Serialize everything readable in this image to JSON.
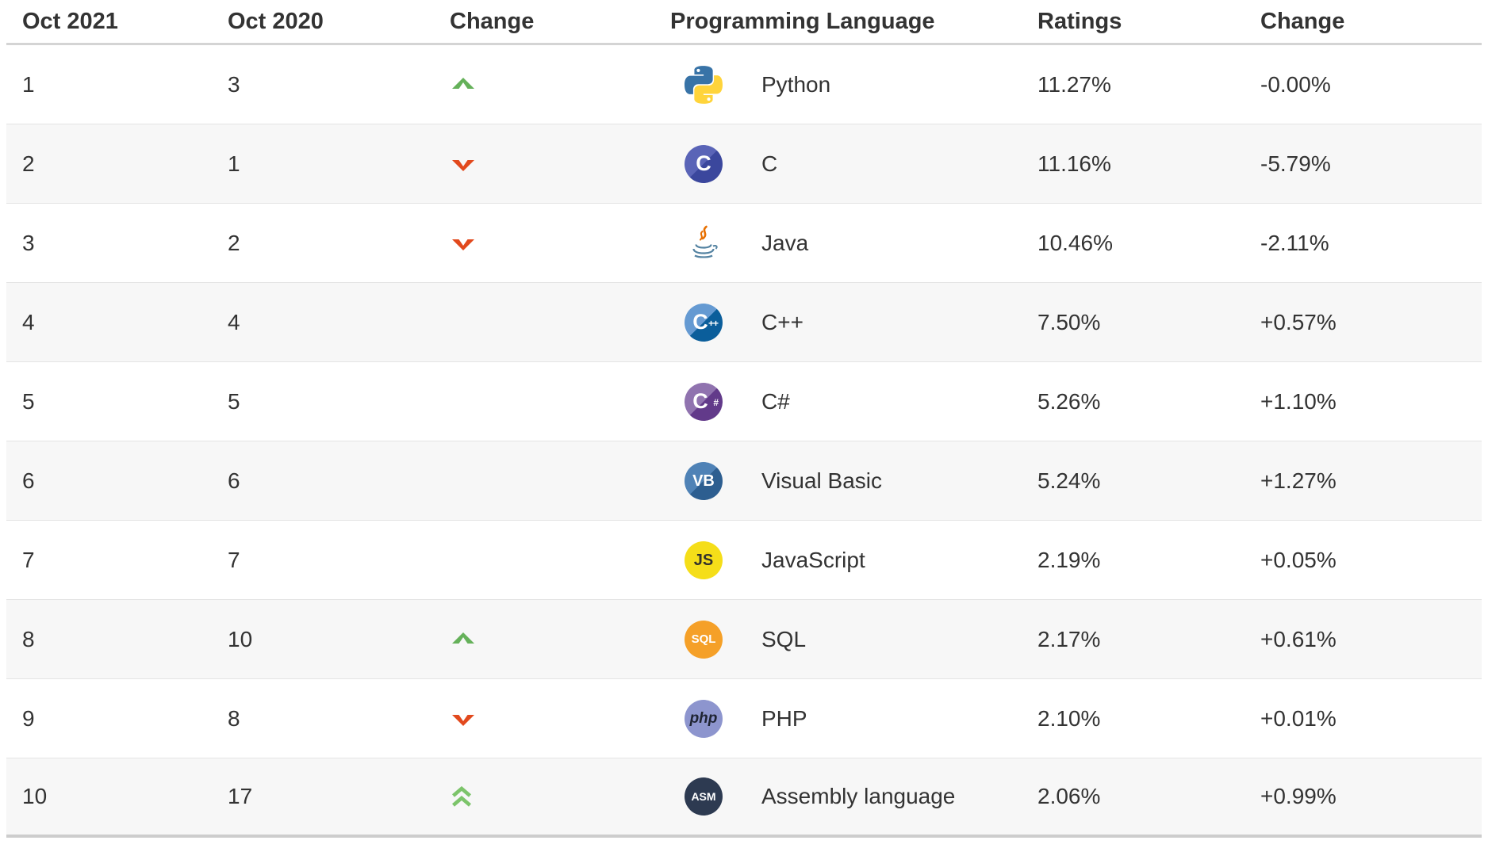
{
  "page": {
    "background": "#ffffff"
  },
  "colors": {
    "header_text": "#333333",
    "body_text": "#333333",
    "row_alt_bg": "#f7f7f7",
    "row_border": "#e4e4e4",
    "header_border": "#d4d4d4",
    "table_bottom_border": "#cdcdcd",
    "trend_up": "#65b15a",
    "trend_down": "#e2491d",
    "trend_up_double": "#7cc46a"
  },
  "table": {
    "headers": [
      "Oct 2021",
      "Oct 2020",
      "Change",
      "Programming Language",
      "Ratings",
      "Change"
    ],
    "rows": [
      {
        "rank2021": "1",
        "rank2020": "3",
        "trend": "up",
        "language": "Python",
        "ratings": "11.27%",
        "change": "-0.00%",
        "icon": {
          "name": "python-icon",
          "kind": "python"
        }
      },
      {
        "rank2021": "2",
        "rank2020": "1",
        "trend": "down",
        "language": "C",
        "ratings": "11.16%",
        "change": "-5.79%",
        "icon": {
          "name": "c-icon",
          "kind": "badge",
          "label": "C",
          "bg": "#5a64b7",
          "bg2": "#3b479d",
          "fg": "#ffffff",
          "size": 27
        }
      },
      {
        "rank2021": "3",
        "rank2020": "2",
        "trend": "down",
        "language": "Java",
        "ratings": "10.46%",
        "change": "-2.11%",
        "icon": {
          "name": "java-icon",
          "kind": "java"
        }
      },
      {
        "rank2021": "4",
        "rank2020": "4",
        "trend": "none",
        "language": "C++",
        "ratings": "7.50%",
        "change": "+0.57%",
        "icon": {
          "name": "cpp-icon",
          "kind": "badge",
          "label": "C",
          "suffix": "++",
          "bg": "#659ad2",
          "bg2": "#0b5e9b",
          "fg": "#ffffff",
          "size": 27
        }
      },
      {
        "rank2021": "5",
        "rank2020": "5",
        "trend": "none",
        "language": "C#",
        "ratings": "5.26%",
        "change": "+1.10%",
        "icon": {
          "name": "csharp-icon",
          "kind": "badge",
          "label": "C",
          "suffix": "#",
          "bg": "#9073af",
          "bg2": "#623a8a",
          "fg": "#ffffff",
          "size": 27
        }
      },
      {
        "rank2021": "6",
        "rank2020": "6",
        "trend": "none",
        "language": "Visual Basic",
        "ratings": "5.24%",
        "change": "+1.27%",
        "icon": {
          "name": "visual-basic-icon",
          "kind": "badge",
          "label": "VB",
          "bg": "#4f82b6",
          "bg2": "#2d5e90",
          "fg": "#ffffff",
          "size": 20
        }
      },
      {
        "rank2021": "7",
        "rank2020": "7",
        "trend": "none",
        "language": "JavaScript",
        "ratings": "2.19%",
        "change": "+0.05%",
        "icon": {
          "name": "javascript-icon",
          "kind": "badge",
          "label": "JS",
          "bg": "#f5de19",
          "fg": "#32322c",
          "size": 20
        }
      },
      {
        "rank2021": "8",
        "rank2020": "10",
        "trend": "up",
        "language": "SQL",
        "ratings": "2.17%",
        "change": "+0.61%",
        "icon": {
          "name": "sql-icon",
          "kind": "badge",
          "label": "SQL",
          "bg": "#f5a028",
          "fg": "#ffffff",
          "size": 15
        }
      },
      {
        "rank2021": "9",
        "rank2020": "8",
        "trend": "down",
        "language": "PHP",
        "ratings": "2.10%",
        "change": "+0.01%",
        "icon": {
          "name": "php-icon",
          "kind": "badge",
          "label": "php",
          "bg": "#8d95ce",
          "fg": "#1f2433",
          "size": 19,
          "italic": true
        }
      },
      {
        "rank2021": "10",
        "rank2020": "17",
        "trend": "up2",
        "language": "Assembly language",
        "ratings": "2.06%",
        "change": "+0.99%",
        "icon": {
          "name": "assembly-icon",
          "kind": "badge",
          "label": "ASM",
          "bg": "#2d3a51",
          "fg": "#ffffff",
          "size": 14
        }
      }
    ]
  }
}
